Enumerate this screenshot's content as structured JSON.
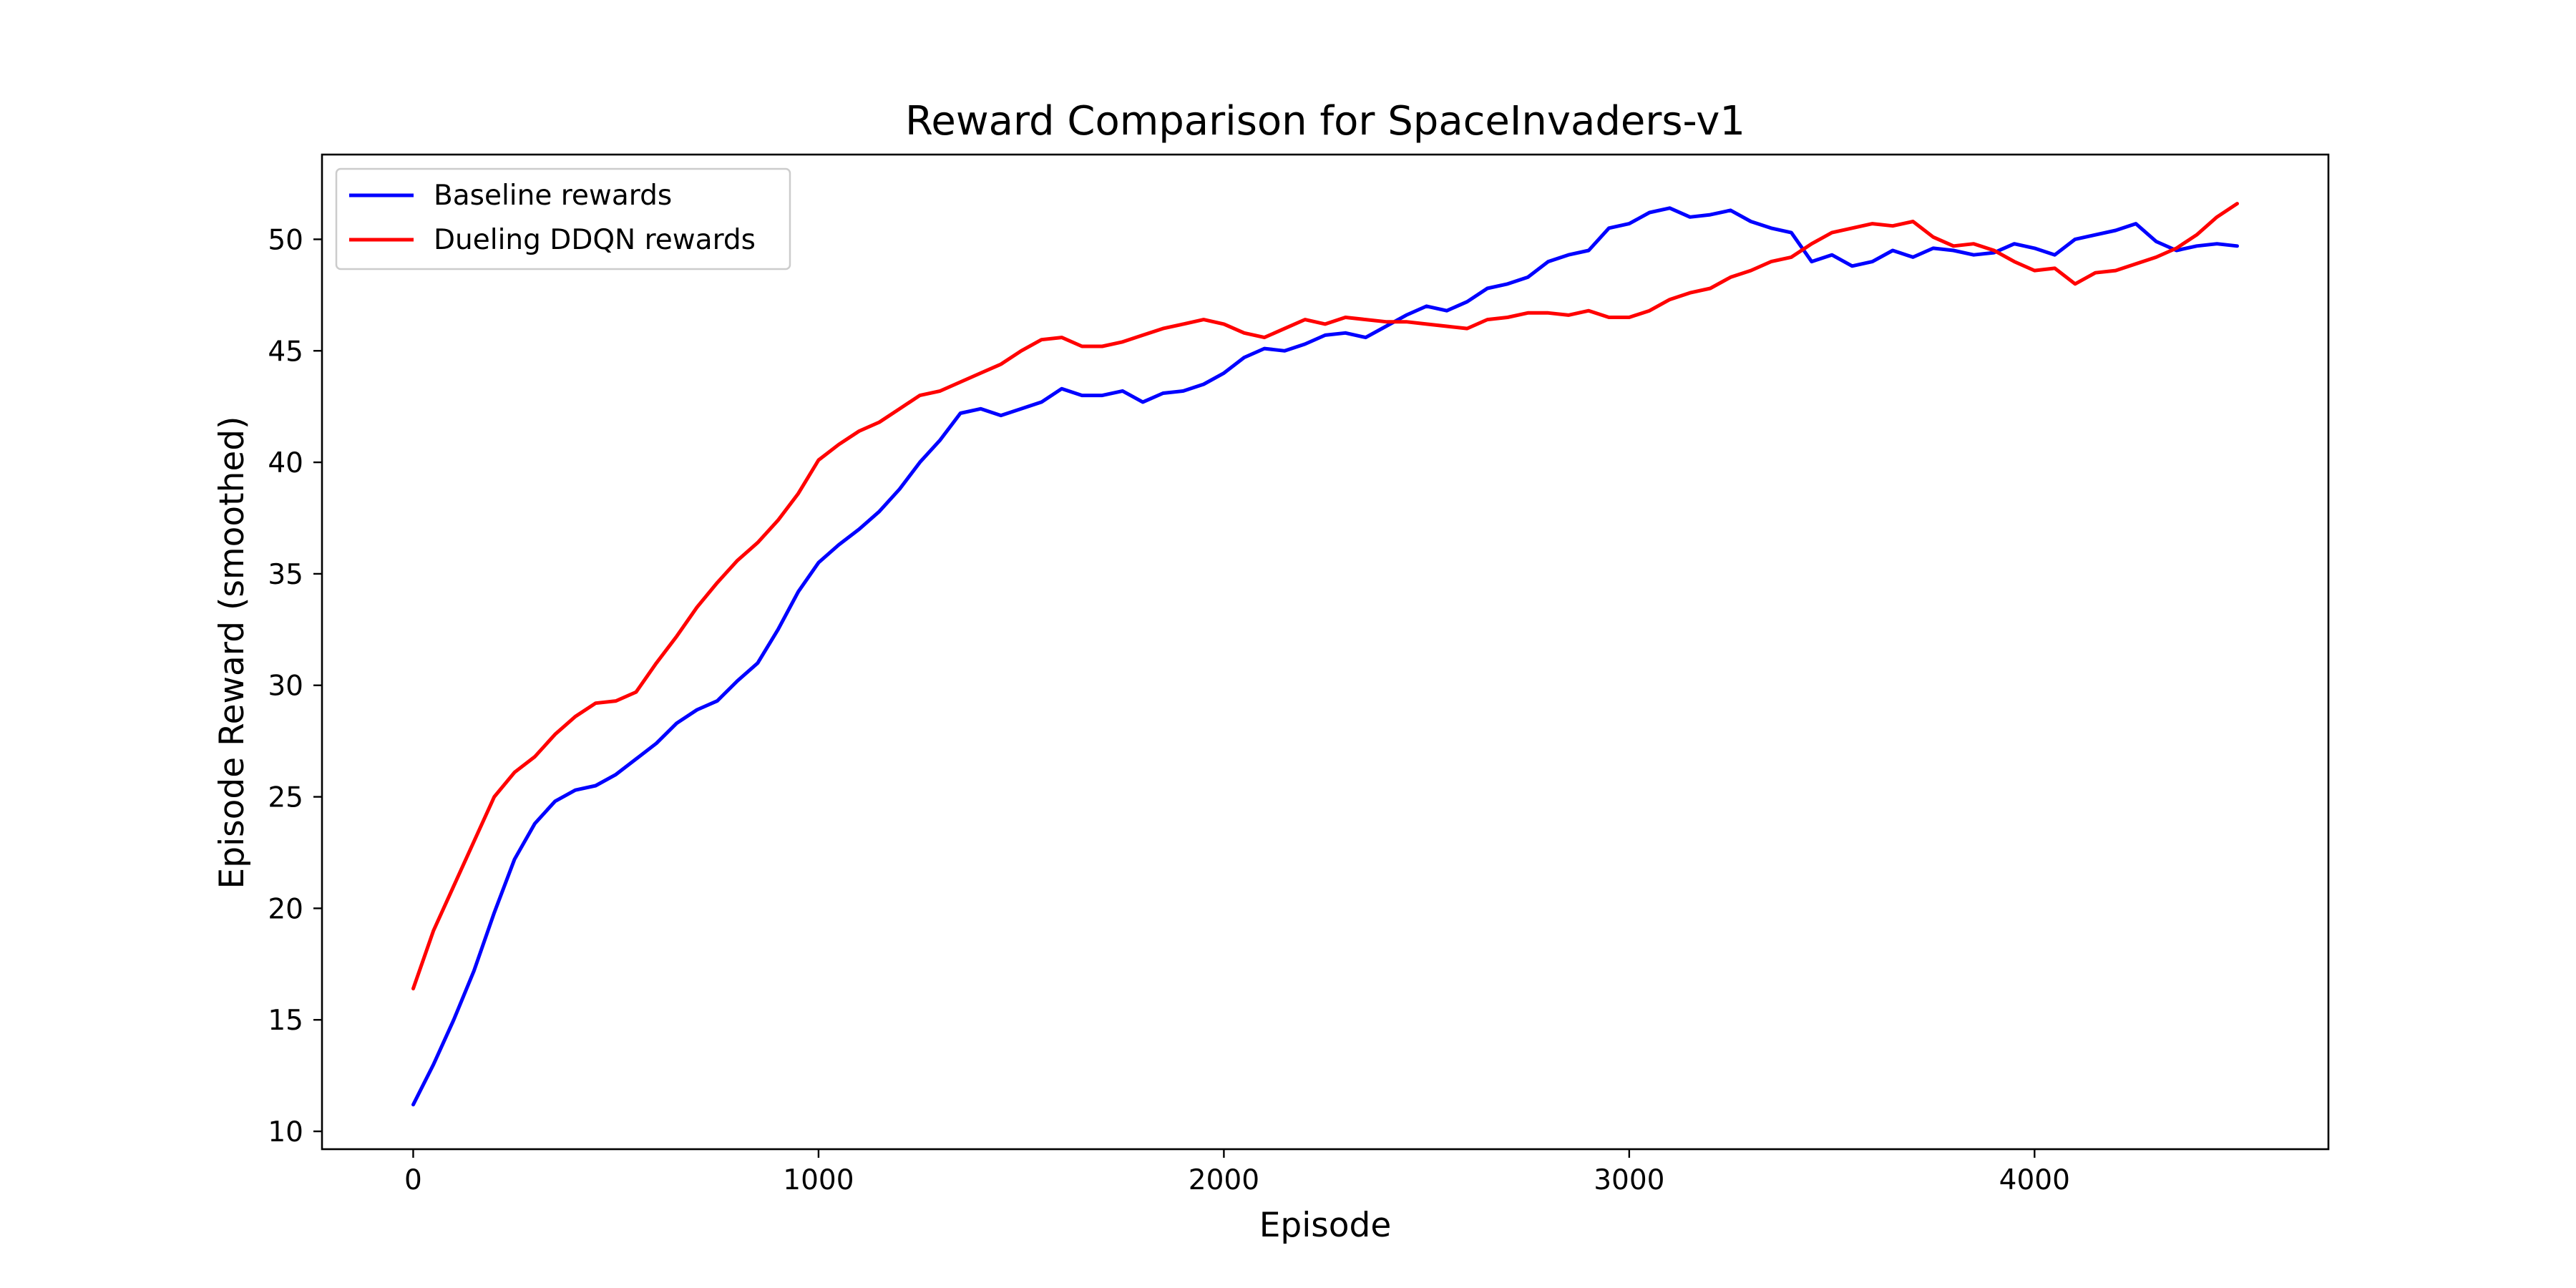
{
  "chart_data": {
    "type": "line",
    "title": "Reward Comparison for SpaceInvaders-v1",
    "xlabel": "Episode",
    "ylabel": "Episode Reward (smoothed)",
    "xlim": [
      -225,
      4725
    ],
    "ylim": [
      9.2,
      53.8
    ],
    "xticks": [
      0,
      1000,
      2000,
      3000,
      4000
    ],
    "yticks": [
      10,
      15,
      20,
      25,
      30,
      35,
      40,
      45,
      50
    ],
    "legend_position": "top-left",
    "grid": false,
    "series": [
      {
        "name": "Baseline rewards",
        "color": "#0000ff",
        "x": [
          0,
          50,
          100,
          150,
          200,
          250,
          300,
          350,
          400,
          450,
          500,
          550,
          600,
          650,
          700,
          750,
          800,
          850,
          900,
          950,
          1000,
          1050,
          1100,
          1150,
          1200,
          1250,
          1300,
          1350,
          1400,
          1450,
          1500,
          1550,
          1600,
          1650,
          1700,
          1750,
          1800,
          1850,
          1900,
          1950,
          2000,
          2050,
          2100,
          2150,
          2200,
          2250,
          2300,
          2350,
          2400,
          2450,
          2500,
          2550,
          2600,
          2650,
          2700,
          2750,
          2800,
          2850,
          2900,
          2950,
          3000,
          3050,
          3100,
          3150,
          3200,
          3250,
          3300,
          3350,
          3400,
          3450,
          3500,
          3550,
          3600,
          3650,
          3700,
          3750,
          3800,
          3850,
          3900,
          3950,
          4000,
          4050,
          4100,
          4150,
          4200,
          4250,
          4300,
          4350,
          4400,
          4450,
          4500
        ],
        "y": [
          11.2,
          13.0,
          15.0,
          17.2,
          19.8,
          22.2,
          23.8,
          24.8,
          25.3,
          25.5,
          26.0,
          26.7,
          27.4,
          28.3,
          28.9,
          29.3,
          30.2,
          31.0,
          32.5,
          34.2,
          35.5,
          36.3,
          37.0,
          37.8,
          38.8,
          40.0,
          41.0,
          42.2,
          42.4,
          42.1,
          42.4,
          42.7,
          43.3,
          43.0,
          43.0,
          43.2,
          42.7,
          43.1,
          43.2,
          43.5,
          44.0,
          44.7,
          45.1,
          45.0,
          45.3,
          45.7,
          45.8,
          45.6,
          46.1,
          46.6,
          47.0,
          46.8,
          47.2,
          47.8,
          48.0,
          48.3,
          49.0,
          49.3,
          49.5,
          50.5,
          50.7,
          51.2,
          51.4,
          51.0,
          51.1,
          51.3,
          50.8,
          50.5,
          50.3,
          49.0,
          49.3,
          48.8,
          49.0,
          49.5,
          49.2,
          49.6,
          49.5,
          49.3,
          49.4,
          49.8,
          49.6,
          49.3,
          50.0,
          50.2,
          50.4,
          50.7,
          49.9,
          49.5,
          49.7,
          49.8,
          49.7
        ]
      },
      {
        "name": "Dueling DDQN rewards",
        "color": "#ff0000",
        "x": [
          0,
          50,
          100,
          150,
          200,
          250,
          300,
          350,
          400,
          450,
          500,
          550,
          600,
          650,
          700,
          750,
          800,
          850,
          900,
          950,
          1000,
          1050,
          1100,
          1150,
          1200,
          1250,
          1300,
          1350,
          1400,
          1450,
          1500,
          1550,
          1600,
          1650,
          1700,
          1750,
          1800,
          1850,
          1900,
          1950,
          2000,
          2050,
          2100,
          2150,
          2200,
          2250,
          2300,
          2350,
          2400,
          2450,
          2500,
          2550,
          2600,
          2650,
          2700,
          2750,
          2800,
          2850,
          2900,
          2950,
          3000,
          3050,
          3100,
          3150,
          3200,
          3250,
          3300,
          3350,
          3400,
          3450,
          3500,
          3550,
          3600,
          3650,
          3700,
          3750,
          3800,
          3850,
          3900,
          3950,
          4000,
          4050,
          4100,
          4150,
          4200,
          4250,
          4300,
          4350,
          4400,
          4450,
          4500
        ],
        "y": [
          16.4,
          19.0,
          21.0,
          23.0,
          25.0,
          26.1,
          26.8,
          27.8,
          28.6,
          29.2,
          29.3,
          29.7,
          31.0,
          32.2,
          33.5,
          34.6,
          35.6,
          36.4,
          37.4,
          38.6,
          40.1,
          40.8,
          41.4,
          41.8,
          42.4,
          43.0,
          43.2,
          43.6,
          44.0,
          44.4,
          45.0,
          45.5,
          45.6,
          45.2,
          45.2,
          45.4,
          45.7,
          46.0,
          46.2,
          46.4,
          46.2,
          45.8,
          45.6,
          46.0,
          46.4,
          46.2,
          46.5,
          46.4,
          46.3,
          46.3,
          46.2,
          46.1,
          46.0,
          46.4,
          46.5,
          46.7,
          46.7,
          46.6,
          46.8,
          46.5,
          46.5,
          46.8,
          47.3,
          47.6,
          47.8,
          48.3,
          48.6,
          49.0,
          49.2,
          49.8,
          50.3,
          50.5,
          50.7,
          50.6,
          50.8,
          50.1,
          49.7,
          49.8,
          49.5,
          49.0,
          48.6,
          48.7,
          48.0,
          48.5,
          48.6,
          48.9,
          49.2,
          49.6,
          50.2,
          51.0,
          51.6
        ]
      }
    ]
  }
}
